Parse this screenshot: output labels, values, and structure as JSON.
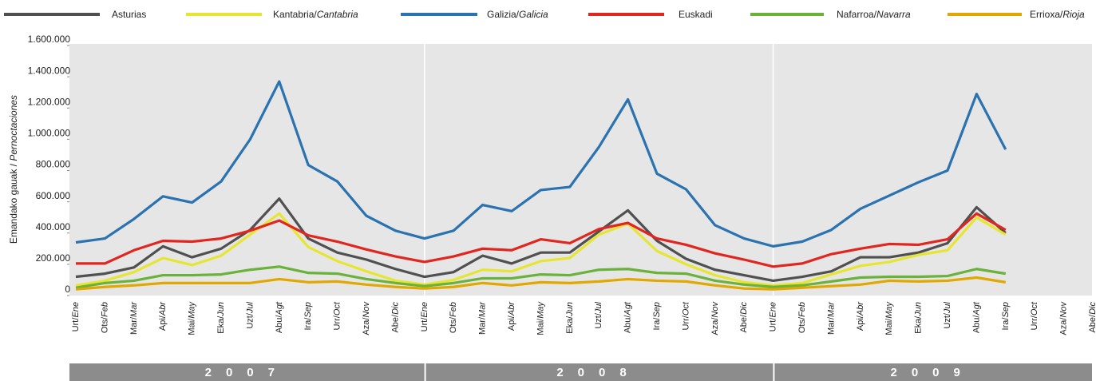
{
  "chart_data": {
    "type": "line",
    "y_label": "Emandako gauak / Pernoctaciones",
    "categories": [
      "Urt/Ene",
      "Ots/Feb",
      "Mar/Mar",
      "Api/Abr",
      "Mai/May",
      "Eka/Jun",
      "Uzt/Jul",
      "Abu/Agt",
      "Ira/Sep",
      "Urr/Oct",
      "Aza/Nov",
      "Abe/Dic",
      "Urt/Ene",
      "Ots/Feb",
      "Mar/Mar",
      "Api/Abr",
      "Mai/May",
      "Eka/Jun",
      "Uzt/Jul",
      "Abu/Agt",
      "Ira/Sep",
      "Urr/Oct",
      "Aza/Nov",
      "Abe/Dic",
      "Urt/Ene",
      "Ots/Feb",
      "Mar/Mar",
      "Api/Abr",
      "Mai/May",
      "Eka/Jun",
      "Uzt/Jul",
      "Abu/Agt",
      "Ira/Sep",
      "Urr/Oct",
      "Aza/Nov",
      "Abe/Dic"
    ],
    "groups": [
      "2007",
      "2008",
      "2009"
    ],
    "ylim": [
      0,
      1600000
    ],
    "yticks": [
      0,
      {
        "value": 200000,
        "label": "200.000"
      },
      {
        "value": 400000,
        "label": "400.000"
      },
      {
        "value": 600000,
        "label": "600.000"
      },
      {
        "value": 800000,
        "label": "800.000"
      },
      {
        "value": 1000000,
        "label": "1.000.000"
      },
      {
        "value": 1200000,
        "label": "1.200.000"
      },
      {
        "value": 1400000,
        "label": "1.400.000"
      },
      {
        "value": 1600000,
        "label": "1.600.000"
      }
    ],
    "legend_position": "top",
    "series": [
      {
        "name": "Asturias",
        "color": "#505050",
        "values": [
          120000,
          140000,
          180000,
          315000,
          245000,
          300000,
          420000,
          620000,
          365000,
          275000,
          230000,
          170000,
          120000,
          150000,
          255000,
          205000,
          275000,
          275000,
          410000,
          545000,
          350000,
          235000,
          165000,
          130000,
          95000,
          120000,
          155000,
          245000,
          245000,
          275000,
          335000,
          565000,
          400000,
          null,
          null,
          null
        ]
      },
      {
        "name": "Kantabria/Cantabria",
        "color": "#e6e632",
        "values": [
          65000,
          95000,
          150000,
          240000,
          195000,
          255000,
          390000,
          525000,
          310000,
          220000,
          155000,
          95000,
          70000,
          100000,
          165000,
          155000,
          220000,
          240000,
          390000,
          460000,
          285000,
          200000,
          130000,
          85000,
          65000,
          80000,
          135000,
          190000,
          215000,
          260000,
          290000,
          500000,
          390000,
          null,
          null,
          null
        ]
      },
      {
        "name": "Galizia/Galicia",
        "color": "#2a72b0",
        "values": [
          340000,
          365000,
          490000,
          635000,
          595000,
          730000,
          1000000,
          1370000,
          835000,
          730000,
          510000,
          415000,
          365000,
          415000,
          580000,
          540000,
          675000,
          695000,
          950000,
          1255000,
          780000,
          680000,
          450000,
          365000,
          315000,
          345000,
          420000,
          555000,
          640000,
          725000,
          800000,
          1290000,
          935000,
          null,
          null,
          null
        ]
      },
      {
        "name": "Euskadi",
        "color": "#e0261f",
        "values": [
          205000,
          205000,
          290000,
          350000,
          345000,
          365000,
          415000,
          480000,
          385000,
          345000,
          295000,
          250000,
          215000,
          250000,
          300000,
          290000,
          360000,
          335000,
          425000,
          465000,
          365000,
          325000,
          270000,
          230000,
          185000,
          205000,
          265000,
          300000,
          330000,
          325000,
          360000,
          525000,
          420000,
          null,
          null,
          null
        ]
      },
      {
        "name": "Nafarroa/Navarra",
        "color": "#6ab23a",
        "values": [
          50000,
          80000,
          95000,
          130000,
          130000,
          135000,
          165000,
          185000,
          145000,
          140000,
          105000,
          80000,
          60000,
          80000,
          110000,
          110000,
          135000,
          130000,
          165000,
          170000,
          145000,
          140000,
          95000,
          70000,
          55000,
          65000,
          90000,
          115000,
          120000,
          120000,
          125000,
          170000,
          140000,
          null,
          null,
          null
        ]
      },
      {
        "name": "Errioxa/Rioja",
        "color": "#e0a800",
        "values": [
          40000,
          55000,
          65000,
          80000,
          80000,
          80000,
          80000,
          105000,
          85000,
          90000,
          70000,
          55000,
          45000,
          55000,
          80000,
          65000,
          85000,
          80000,
          90000,
          105000,
          95000,
          90000,
          65000,
          45000,
          40000,
          50000,
          60000,
          70000,
          95000,
          90000,
          95000,
          115000,
          85000,
          null,
          null,
          null
        ]
      }
    ]
  }
}
